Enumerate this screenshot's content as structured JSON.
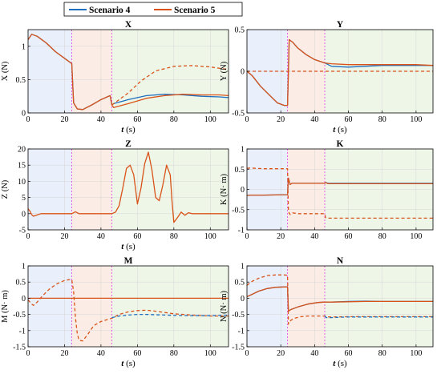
{
  "legend": {
    "items": [
      {
        "label": "Scenario 4",
        "color": "#1f6fbf"
      },
      {
        "label": "Scenario 5",
        "color": "#d95319"
      }
    ]
  },
  "colors": {
    "phase1": "#e9effb",
    "phase2": "#fbede5",
    "phase3": "#eef6e8",
    "divider": "#e040e0",
    "zero_line": "#d95319"
  },
  "chart_data": [
    {
      "type": "line",
      "title": "X",
      "xlabel": "t (s)",
      "ylabel": "X (N)",
      "xlim": [
        0,
        110
      ],
      "ylim": [
        0,
        1.25
      ],
      "xticks": [
        0,
        20,
        40,
        60,
        80,
        100
      ],
      "yticks": [
        0,
        0.5,
        1
      ],
      "yticklabels": [
        "0",
        "0.5",
        "1"
      ],
      "phase_boundaries": [
        24,
        46
      ],
      "series": [
        {
          "color": "#1f6fbf",
          "dashed": false,
          "x": [
            0,
            2,
            5,
            10,
            15,
            20,
            24,
            25,
            27,
            30,
            35,
            40,
            45,
            46,
            47,
            55,
            65,
            75,
            85,
            95,
            105,
            110
          ],
          "y": [
            1.1,
            1.18,
            1.15,
            1.05,
            0.92,
            0.82,
            0.74,
            0.15,
            0.06,
            0.05,
            0.12,
            0.2,
            0.26,
            0.12,
            0.14,
            0.2,
            0.26,
            0.28,
            0.27,
            0.25,
            0.24,
            0.23
          ]
        },
        {
          "color": "#d95319",
          "dashed": false,
          "x": [
            0,
            2,
            5,
            10,
            15,
            20,
            24,
            25,
            27,
            30,
            35,
            40,
            45,
            46,
            47,
            55,
            65,
            75,
            85,
            95,
            105,
            110
          ],
          "y": [
            1.1,
            1.18,
            1.15,
            1.05,
            0.92,
            0.82,
            0.74,
            0.15,
            0.06,
            0.05,
            0.12,
            0.2,
            0.26,
            0.12,
            0.08,
            0.14,
            0.22,
            0.26,
            0.28,
            0.27,
            0.27,
            0.26
          ]
        },
        {
          "color": "#d95319",
          "dashed": true,
          "x": [
            46,
            48,
            55,
            62,
            70,
            80,
            90,
            100,
            110
          ],
          "y": [
            0.12,
            0.16,
            0.3,
            0.48,
            0.63,
            0.7,
            0.71,
            0.69,
            0.65
          ]
        }
      ]
    },
    {
      "type": "line",
      "title": "Y",
      "xlabel": "t (s)",
      "ylabel": "Y (N)",
      "xlim": [
        0,
        110
      ],
      "ylim": [
        -0.5,
        0.5
      ],
      "xticks": [
        0,
        20,
        40,
        60,
        80,
        100
      ],
      "yticks": [
        -0.5,
        0,
        0.5
      ],
      "yticklabels": [
        "-0.5",
        "0",
        "0.5"
      ],
      "phase_boundaries": [
        24,
        46
      ],
      "series": [
        {
          "color": "#1f6fbf",
          "dashed": false,
          "x": [
            0,
            3,
            8,
            14,
            18,
            22,
            24,
            25,
            27,
            30,
            35,
            40,
            46,
            50,
            60,
            80,
            100,
            110
          ],
          "y": [
            0,
            -0.05,
            -0.18,
            -0.3,
            -0.38,
            -0.41,
            -0.41,
            0.38,
            0.35,
            0.28,
            0.2,
            0.14,
            0.1,
            0.06,
            0.05,
            0.07,
            0.07,
            0.07
          ]
        },
        {
          "color": "#d95319",
          "dashed": false,
          "x": [
            0,
            3,
            8,
            14,
            18,
            22,
            24,
            25,
            27,
            30,
            35,
            40,
            46,
            50,
            60,
            80,
            100,
            110
          ],
          "y": [
            0,
            -0.05,
            -0.18,
            -0.3,
            -0.38,
            -0.41,
            -0.41,
            0.38,
            0.35,
            0.28,
            0.2,
            0.14,
            0.1,
            0.09,
            0.08,
            0.08,
            0.08,
            0.07
          ]
        },
        {
          "color": "#d95319",
          "dashed": true,
          "x": [
            0,
            110
          ],
          "y": [
            0,
            0
          ]
        }
      ]
    },
    {
      "type": "line",
      "title": "Z",
      "xlabel": "t (s)",
      "ylabel": "Z (N)",
      "xlim": [
        0,
        110
      ],
      "ylim": [
        -5,
        20
      ],
      "xticks": [
        0,
        20,
        40,
        60,
        80,
        100
      ],
      "yticks": [
        -5,
        0,
        5,
        10,
        15,
        20
      ],
      "yticklabels": [
        "-5",
        "0",
        "5",
        "10",
        "15",
        "20"
      ],
      "phase_boundaries": [
        24,
        46
      ],
      "series": [
        {
          "color": "#d95319",
          "dashed": false,
          "x": [
            0,
            1,
            2,
            3,
            5,
            7,
            10,
            15,
            20,
            24,
            26,
            28,
            30,
            35,
            40,
            45,
            46,
            48,
            50,
            52,
            54,
            56,
            58,
            60,
            62,
            64,
            66,
            68,
            70,
            72,
            74,
            76,
            78,
            79,
            80,
            82,
            84,
            86,
            88,
            90,
            95,
            100,
            110
          ],
          "y": [
            1.5,
            0.8,
            -0.3,
            -0.8,
            -0.4,
            0,
            0,
            0,
            0,
            0,
            0.6,
            0,
            0,
            0,
            0,
            0,
            0,
            0.5,
            2.5,
            8,
            14,
            15,
            12,
            3,
            8,
            15.5,
            19,
            13.5,
            5,
            4,
            9,
            15,
            12,
            4,
            -2.7,
            -1.2,
            0.5,
            -0.5,
            0.3,
            0,
            0,
            0,
            0
          ]
        }
      ]
    },
    {
      "type": "line",
      "title": "K",
      "xlabel": "",
      "ylabel": "K (N· m)",
      "xlim": [
        0,
        110
      ],
      "ylim": [
        -1,
        1
      ],
      "xticks": [
        0,
        20,
        40,
        60,
        80,
        100
      ],
      "yticks": [
        -1,
        -0.5,
        0,
        0.5,
        1
      ],
      "yticklabels": [
        "-1",
        "-0.5",
        "0",
        "0.5",
        "1"
      ],
      "phase_boundaries": [
        24,
        46
      ],
      "series": [
        {
          "color": "#d95319",
          "dashed": true,
          "x": [
            0,
            2,
            5,
            10,
            20,
            24,
            24.5,
            25.5,
            27,
            30,
            46,
            46.5,
            48,
            60,
            80,
            110
          ],
          "y": [
            0.52,
            0.53,
            0.52,
            0.51,
            0.51,
            0.51,
            -0.55,
            -0.62,
            -0.58,
            -0.6,
            -0.6,
            -0.7,
            -0.71,
            -0.71,
            -0.71,
            -0.71
          ]
        },
        {
          "color": "#1f6fbf",
          "dashed": false,
          "x": [
            0,
            2,
            10,
            24,
            24.5,
            25.5,
            26.5,
            28,
            46,
            46.5,
            48,
            110
          ],
          "y": [
            -0.15,
            -0.14,
            -0.14,
            -0.13,
            0.28,
            0.12,
            0.15,
            0.15,
            0.15,
            0.17,
            0.15,
            0.15
          ]
        },
        {
          "color": "#d95319",
          "dashed": false,
          "x": [
            0,
            2,
            10,
            24,
            24.5,
            25.5,
            26.5,
            28,
            46,
            46.5,
            48,
            110
          ],
          "y": [
            -0.15,
            -0.14,
            -0.14,
            -0.13,
            0.28,
            0.12,
            0.15,
            0.15,
            0.15,
            0.17,
            0.14,
            0.14
          ]
        }
      ]
    },
    {
      "type": "line",
      "title": "M",
      "xlabel": "t (s)",
      "ylabel": "M (N· m)",
      "xlim": [
        0,
        110
      ],
      "ylim": [
        -1.5,
        1
      ],
      "xticks": [
        0,
        20,
        40,
        60,
        80,
        100
      ],
      "yticks": [
        -1.5,
        -1,
        -0.5,
        0,
        0.5,
        1
      ],
      "yticklabels": [
        "-1.5",
        "-1",
        "-0.5",
        "0",
        "0.5",
        "1"
      ],
      "phase_boundaries": [
        24,
        46
      ],
      "series": [
        {
          "color": "#d95319",
          "dashed": true,
          "x": [
            0,
            2,
            3,
            5,
            8,
            12,
            16,
            20,
            23,
            24,
            25,
            26,
            27,
            28,
            30,
            33,
            36,
            40,
            44,
            46,
            50,
            55,
            60,
            65,
            70,
            75,
            80,
            90,
            100,
            110
          ],
          "y": [
            -0.05,
            -0.18,
            -0.22,
            -0.12,
            0.08,
            0.3,
            0.45,
            0.55,
            0.58,
            0.58,
            0.2,
            -0.6,
            -1.1,
            -1.3,
            -1.32,
            -1.1,
            -0.85,
            -0.72,
            -0.65,
            -0.62,
            -0.5,
            -0.42,
            -0.38,
            -0.37,
            -0.4,
            -0.44,
            -0.48,
            -0.52,
            -0.55,
            -0.55
          ]
        },
        {
          "color": "#1f6fbf",
          "dashed": true,
          "x": [
            46,
            50,
            55,
            60,
            65,
            70,
            75,
            80,
            90,
            100,
            110
          ],
          "y": [
            -0.6,
            -0.55,
            -0.52,
            -0.5,
            -0.5,
            -0.51,
            -0.52,
            -0.53,
            -0.54,
            -0.54,
            -0.52
          ]
        },
        {
          "color": "#d95319",
          "dashed": false,
          "x": [
            0,
            110
          ],
          "y": [
            0,
            0
          ]
        }
      ]
    },
    {
      "type": "line",
      "title": "N",
      "xlabel": "t (s)",
      "ylabel": "N (N· m)",
      "xlim": [
        0,
        110
      ],
      "ylim": [
        -1.5,
        1
      ],
      "xticks": [
        0,
        20,
        40,
        60,
        80,
        100
      ],
      "yticks": [
        -1.5,
        -1,
        -0.5,
        0,
        0.5,
        1
      ],
      "yticklabels": [
        "-1.5",
        "-1",
        "-0.5",
        "0",
        "0.5",
        "1"
      ],
      "phase_boundaries": [
        24,
        46
      ],
      "series": [
        {
          "color": "#d95319",
          "dashed": true,
          "x": [
            0,
            3,
            7,
            12,
            17,
            22,
            24,
            24.5,
            26,
            28,
            32,
            36,
            40,
            46,
            47,
            50,
            60,
            80,
            110
          ],
          "y": [
            0.4,
            0.52,
            0.62,
            0.7,
            0.72,
            0.72,
            0.71,
            -0.8,
            -0.68,
            -0.62,
            -0.57,
            -0.55,
            -0.55,
            -0.55,
            -0.58,
            -0.58,
            -0.57,
            -0.57,
            -0.57
          ]
        },
        {
          "color": "#1f6fbf",
          "dashed": true,
          "x": [
            46,
            47,
            50,
            60,
            80,
            110
          ],
          "y": [
            -0.55,
            -0.6,
            -0.6,
            -0.58,
            -0.58,
            -0.58
          ]
        },
        {
          "color": "#1f6fbf",
          "dashed": false,
          "x": [
            0,
            3,
            7,
            12,
            17,
            22,
            24,
            24.5,
            26,
            30,
            36,
            42,
            46,
            50,
            60,
            70,
            80,
            100,
            110
          ],
          "y": [
            0.05,
            0.12,
            0.22,
            0.3,
            0.34,
            0.35,
            0.35,
            -0.4,
            -0.35,
            -0.27,
            -0.18,
            -0.13,
            -0.12,
            -0.12,
            -0.1,
            -0.09,
            -0.1,
            -0.1,
            -0.1
          ]
        },
        {
          "color": "#d95319",
          "dashed": false,
          "x": [
            0,
            3,
            7,
            12,
            17,
            22,
            24,
            24.5,
            26,
            30,
            36,
            42,
            46,
            50,
            60,
            70,
            80,
            100,
            110
          ],
          "y": [
            0.05,
            0.12,
            0.22,
            0.3,
            0.34,
            0.35,
            0.35,
            -0.4,
            -0.35,
            -0.27,
            -0.18,
            -0.13,
            -0.12,
            -0.12,
            -0.11,
            -0.1,
            -0.1,
            -0.1,
            -0.1
          ]
        }
      ]
    }
  ]
}
